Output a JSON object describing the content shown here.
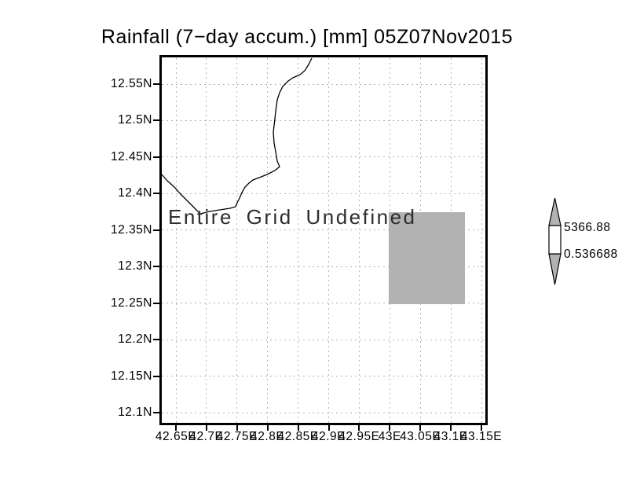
{
  "title": "Rainfall (7−day accum.) [mm] 05Z07Nov2015",
  "plot": {
    "undefined_text": "Entire Grid Undefined",
    "y_tick_labels": [
      "12.55N",
      "12.5N",
      "12.45N",
      "12.4N",
      "12.35N",
      "12.3N",
      "12.25N",
      "12.2N",
      "12.15N",
      "12.1N"
    ],
    "x_tick_labels": [
      "42.65E",
      "42.7E",
      "42.75E",
      "42.8E",
      "42.85E",
      "42.9E",
      "42.95E",
      "43E",
      "43.05E",
      "43.1E",
      "43.15E"
    ]
  },
  "colorbar": {
    "max_label": "5366.88",
    "min_label": "0.536688"
  },
  "colors": {
    "undefined_fill": "#b2b2b2",
    "grid_line": "#b4b4b4",
    "frame": "#000000",
    "background": "#ffffff"
  },
  "chart_data": {
    "type": "heatmap",
    "title": "Rainfall (7−day accum.) [mm] 05Z07Nov2015",
    "variable": "Rainfall (7-day accum.)",
    "units": "mm",
    "valid_time": "05Z07Nov2015",
    "status_annotation": "Entire Grid Undefined",
    "x_axis": {
      "ticks": [
        "42.65E",
        "42.7E",
        "42.75E",
        "42.8E",
        "42.85E",
        "42.9E",
        "42.95E",
        "43E",
        "43.05E",
        "43.1E",
        "43.15E"
      ],
      "tick_values": [
        42.65,
        42.7,
        42.75,
        42.8,
        42.85,
        42.9,
        42.95,
        43.0,
        43.05,
        43.1,
        43.15
      ],
      "range": [
        42.625,
        43.16
      ]
    },
    "y_axis": {
      "ticks": [
        "12.55N",
        "12.5N",
        "12.45N",
        "12.4N",
        "12.35N",
        "12.3N",
        "12.25N",
        "12.2N",
        "12.15N",
        "12.1N"
      ],
      "tick_values": [
        12.55,
        12.5,
        12.45,
        12.4,
        12.35,
        12.3,
        12.25,
        12.2,
        12.15,
        12.1
      ],
      "range": [
        12.085,
        12.585
      ]
    },
    "grid": true,
    "values": [],
    "undefined_region": {
      "lon_range": [
        43.0,
        43.125
      ],
      "lat_range": [
        12.25,
        12.375
      ],
      "rendered_as": "gray filled cell"
    },
    "colorbar": {
      "orientation": "vertical",
      "position": "right",
      "min": 0.536688,
      "max": 5366.88,
      "segment_colors": [
        "#b2b2b2",
        "#ffffff",
        "#b2b2b2"
      ]
    },
    "coastline_shown": true
  }
}
